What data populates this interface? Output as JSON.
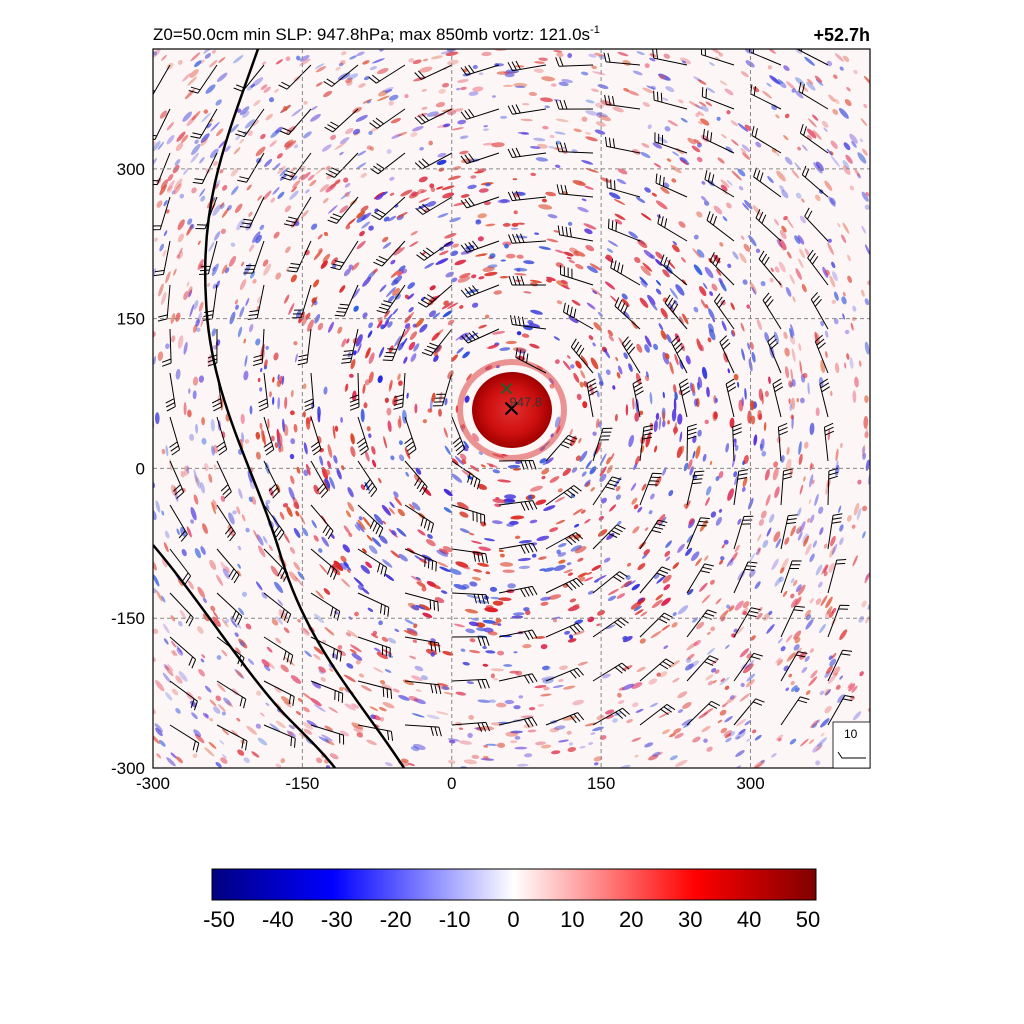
{
  "chart_data": {
    "type": "heatmap",
    "title_left": "Z0=50.0cm  min SLP: 947.8hPa; max 850mb vortz: 121.0s",
    "title_superscript": "-1",
    "title_right": "+52.7h",
    "xlim": [
      -300,
      420
    ],
    "ylim": [
      -300,
      420
    ],
    "x_ticks": [
      "-300",
      "-150",
      "0",
      "150",
      "300"
    ],
    "y_ticks": [
      "-300",
      "-150",
      "0",
      "150",
      "300"
    ],
    "grid": true,
    "center_marker": {
      "x": 60,
      "y": 60,
      "label": "947.8"
    },
    "secondary_marker": {
      "x": 55,
      "y": 80
    },
    "colorbar": {
      "ticks": [
        "-50",
        "-40",
        "-30",
        "-20",
        "-10",
        "0",
        "10",
        "20",
        "30",
        "40",
        "50"
      ],
      "range": [
        -50,
        50
      ]
    },
    "wind_key_label": "10",
    "colors": {
      "negative": "#00008b",
      "positive": "#8b0000",
      "neutral": "#ffffff"
    }
  }
}
